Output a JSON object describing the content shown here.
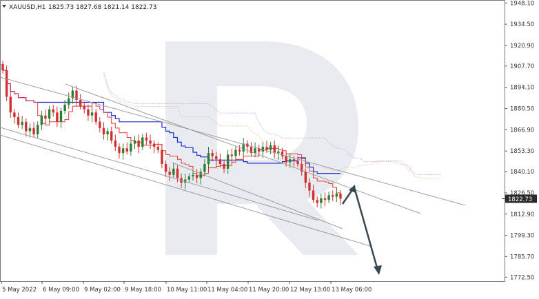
{
  "header": {
    "symbol": "XAUUSD,H1",
    "ohlc": "1825.73 1827.68 1821.14 1822.73"
  },
  "chart_data": {
    "type": "candlestick",
    "symbol": "XAUUSD",
    "timeframe": "H1",
    "open": 1825.73,
    "high": 1827.68,
    "low": 1821.14,
    "close": 1822.73,
    "current_price_label": "1822.73",
    "ylim": [
      1770.0,
      1950.0
    ],
    "y_ticks": [
      1948.1,
      1934.5,
      1920.9,
      1907.7,
      1894.1,
      1880.5,
      1866.9,
      1853.3,
      1840.1,
      1826.5,
      1812.9,
      1799.3,
      1785.7,
      1772.5
    ],
    "x_ticks": [
      "5 May 2022",
      "6 May 09:00",
      "9 May 02:00",
      "9 May 18:00",
      "10 May 11:00",
      "11 May 04:00",
      "11 May 20:00",
      "12 May 13:00",
      "13 May 06:00"
    ],
    "candles_close": [
      1905,
      1888,
      1878,
      1875,
      1870,
      1872,
      1866,
      1868,
      1864,
      1870,
      1876,
      1874,
      1880,
      1878,
      1872,
      1879,
      1883,
      1887,
      1892,
      1886,
      1882,
      1880,
      1876,
      1878,
      1872,
      1868,
      1864,
      1866,
      1860,
      1856,
      1852,
      1855,
      1853,
      1858,
      1860,
      1856,
      1862,
      1860,
      1858,
      1856,
      1854,
      1845,
      1840,
      1838,
      1842,
      1836,
      1833,
      1835,
      1837,
      1838,
      1836,
      1840,
      1845,
      1852,
      1850,
      1848,
      1845,
      1842,
      1851,
      1850,
      1854,
      1853,
      1858,
      1856,
      1852,
      1855,
      1853,
      1856,
      1854,
      1857,
      1852,
      1853,
      1850,
      1846,
      1848,
      1847,
      1845,
      1840,
      1833,
      1828,
      1822,
      1820,
      1823,
      1822,
      1825,
      1824,
      1826,
      1822.73
    ],
    "colors": {
      "bull": "#2e7d32",
      "bear": "#d32f2f",
      "kijun": "#1a2bd6",
      "tenkan": "#e53935",
      "cloud": "#f4b183",
      "cloud_alt": "#b39ddb",
      "channel": "#9e9e9e",
      "arrow": "#37474f",
      "price_tag": "#2b2b2b"
    }
  }
}
